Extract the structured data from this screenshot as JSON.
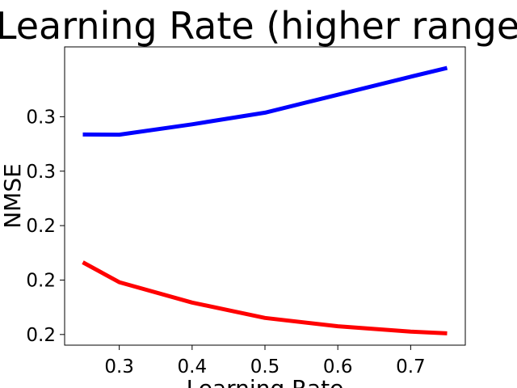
{
  "chart_data": {
    "type": "line",
    "title": "Learning Rate (higher range)",
    "xlabel": "Learning Rate",
    "ylabel": "NMSE",
    "xlim": [
      0.225,
      0.775
    ],
    "ylim": [
      0.1795,
      0.3055
    ],
    "x_ticks": [
      {
        "value": 0.3,
        "label": "0.3"
      },
      {
        "value": 0.4,
        "label": "0.4"
      },
      {
        "value": 0.5,
        "label": "0.5"
      },
      {
        "value": 0.6,
        "label": "0.6"
      },
      {
        "value": 0.7,
        "label": "0.7"
      }
    ],
    "y_ticks": [
      {
        "value": 0.184,
        "label": "0.2"
      },
      {
        "value": 0.207,
        "label": "0.2"
      },
      {
        "value": 0.23,
        "label": "0.2"
      },
      {
        "value": 0.253,
        "label": "0.3"
      },
      {
        "value": 0.276,
        "label": "0.3"
      }
    ],
    "grid": false,
    "series": [
      {
        "color": "#0000ff",
        "x": [
          0.25,
          0.3,
          0.4,
          0.5,
          0.6,
          0.7,
          0.75
        ],
        "y": [
          0.2685,
          0.2684,
          0.2728,
          0.2777,
          0.2853,
          0.2929,
          0.2966
        ]
      },
      {
        "color": "#ff0000",
        "x": [
          0.25,
          0.3,
          0.4,
          0.5,
          0.6,
          0.7,
          0.75
        ],
        "y": [
          0.2145,
          0.2061,
          0.1975,
          0.191,
          0.1875,
          0.1852,
          0.1845
        ]
      }
    ]
  }
}
